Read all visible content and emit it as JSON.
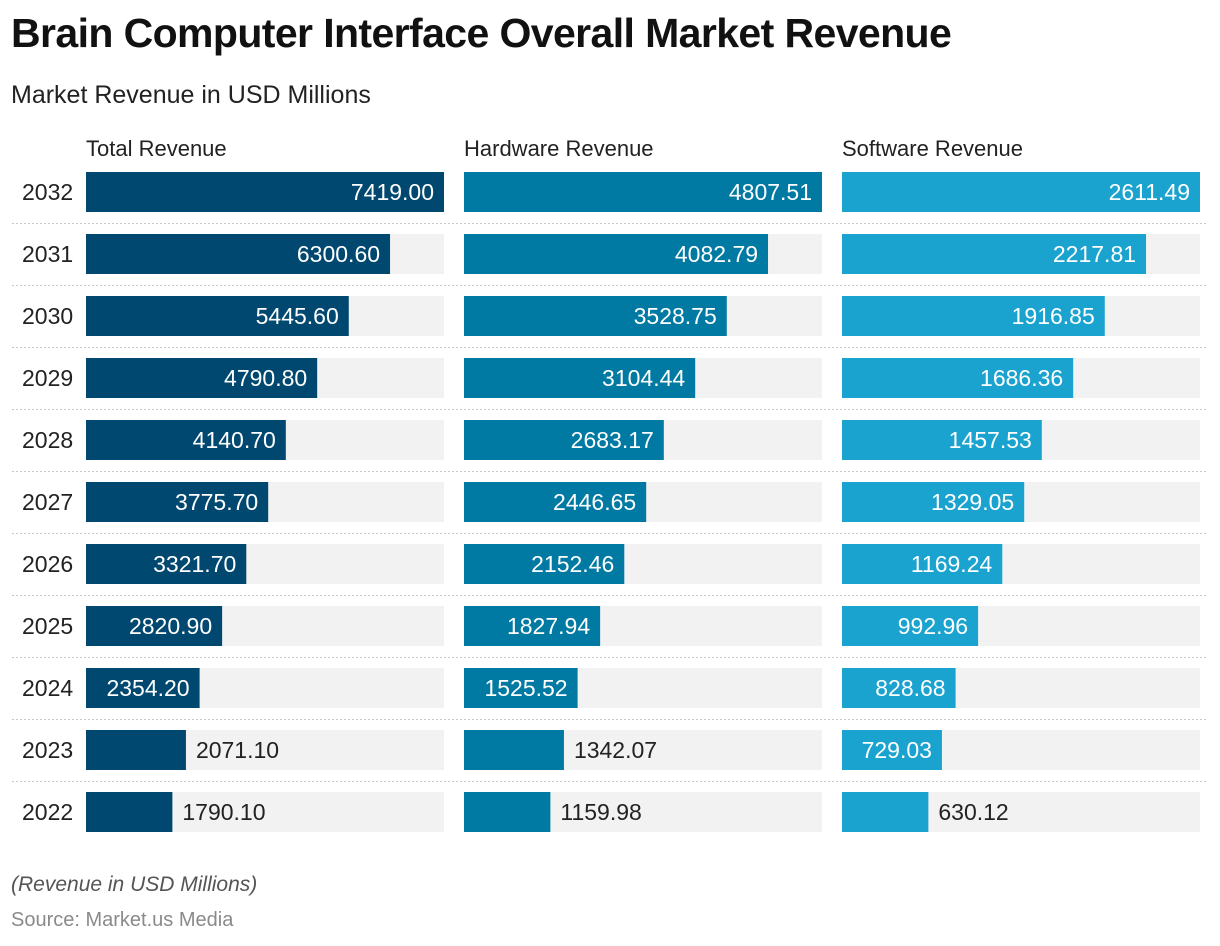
{
  "chart_data": {
    "type": "bar",
    "orientation": "horizontal",
    "title": "Brain Computer Interface Overall Market Revenue",
    "subtitle": "Market Revenue in USD Millions",
    "categories": [
      "2032",
      "2031",
      "2030",
      "2029",
      "2028",
      "2027",
      "2026",
      "2025",
      "2024",
      "2023",
      "2022"
    ],
    "series": [
      {
        "name": "Total Revenue",
        "color": "#00486f",
        "values": [
          7419.0,
          6300.6,
          5445.6,
          4790.8,
          4140.7,
          3775.7,
          3321.7,
          2820.9,
          2354.2,
          2071.1,
          1790.1
        ],
        "labels": [
          "7419.00",
          "6300.60",
          "5445.60",
          "4790.80",
          "4140.70",
          "3775.70",
          "3321.70",
          "2820.90",
          "2354.20",
          "2071.10",
          "1790.10"
        ]
      },
      {
        "name": "Hardware Revenue",
        "color": "#0079a3",
        "values": [
          4807.51,
          4082.79,
          3528.75,
          3104.44,
          2683.17,
          2446.65,
          2152.46,
          1827.94,
          1525.52,
          1342.07,
          1159.98
        ],
        "labels": [
          "4807.51",
          "4082.79",
          "3528.75",
          "3104.44",
          "2683.17",
          "2446.65",
          "2152.46",
          "1827.94",
          "1525.52",
          "1342.07",
          "1159.98"
        ]
      },
      {
        "name": "Software Revenue",
        "color": "#1ba3cf",
        "values": [
          2611.49,
          2217.81,
          1916.85,
          1686.36,
          1457.53,
          1329.05,
          1169.24,
          992.96,
          828.68,
          729.03,
          630.12
        ],
        "labels": [
          "2611.49",
          "2217.81",
          "1916.85",
          "1686.36",
          "1457.53",
          "1329.05",
          "1169.24",
          "992.96",
          "828.68",
          "729.03",
          "630.12"
        ]
      }
    ],
    "panel_background": "#f2f2f2",
    "grid": false,
    "legend": "none"
  },
  "footer": {
    "note": "(Revenue in USD Millions)",
    "source": "Source: Market.us Media"
  }
}
